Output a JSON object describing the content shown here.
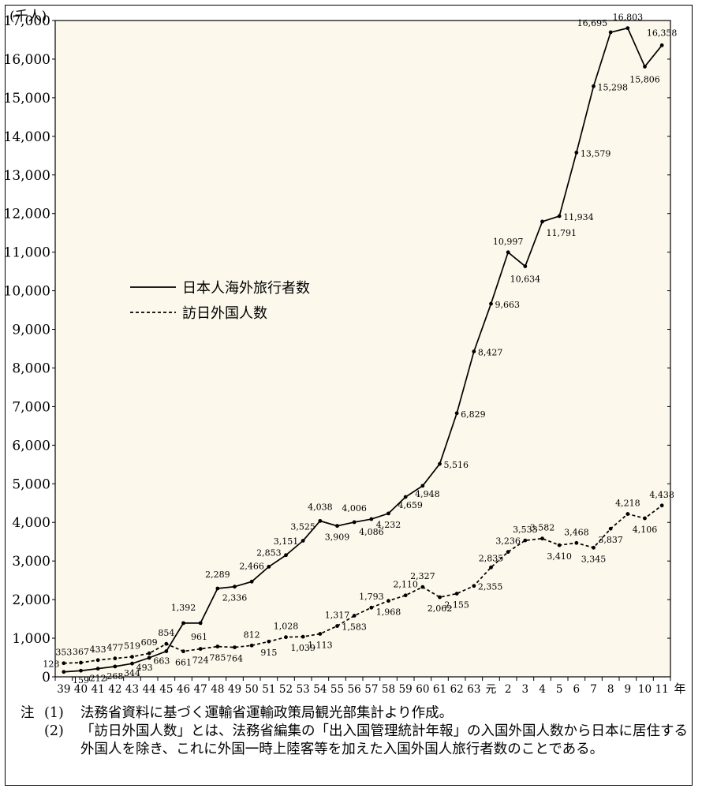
{
  "chart_data": {
    "type": "line",
    "unit_label": "(千人)",
    "x_unit": "年",
    "x": [
      "39",
      "40",
      "41",
      "42",
      "43",
      "44",
      "45",
      "46",
      "47",
      "48",
      "49",
      "50",
      "51",
      "52",
      "53",
      "54",
      "55",
      "56",
      "57",
      "58",
      "59",
      "60",
      "61",
      "62",
      "63",
      "元",
      "2",
      "3",
      "4",
      "5",
      "6",
      "7",
      "8",
      "9",
      "10",
      "11"
    ],
    "y_ticks": [
      0,
      1000,
      2000,
      3000,
      4000,
      5000,
      6000,
      7000,
      8000,
      9000,
      10000,
      11000,
      12000,
      13000,
      14000,
      15000,
      16000,
      17000
    ],
    "ylim": [
      0,
      17000
    ],
    "series": [
      {
        "name": "日本人海外旅行者数",
        "style": "solid",
        "values": [
          128,
          159,
          212,
          268,
          344,
          493,
          663,
          1392,
          1392,
          2289,
          2336,
          2466,
          2853,
          3151,
          3525,
          4038,
          3909,
          4006,
          4086,
          4232,
          4659,
          4948,
          5516,
          6829,
          8427,
          9663,
          10997,
          10634,
          11791,
          11934,
          13579,
          15298,
          16695,
          16803,
          15806,
          16358
        ],
        "labels": [
          "128",
          "159",
          "212",
          "268",
          "344",
          "493",
          "663",
          "1,392",
          "",
          "2,289",
          "2,336",
          "2,466",
          "2,853",
          "3,151",
          "3,525",
          "4,038",
          "3,909",
          "4,006",
          "4,086",
          "4,232",
          "4,659",
          "4,948",
          "5,516",
          "6,829",
          "8,427",
          "9,663",
          "10,997",
          "10,634",
          "11,791",
          "11,934",
          "13,579",
          "15,298",
          "16,695",
          "16,803",
          "15,806",
          "16,358"
        ]
      },
      {
        "name": "訪日外国人数",
        "style": "dashed",
        "values": [
          353,
          367,
          433,
          477,
          519,
          609,
          854,
          661,
          724,
          785,
          764,
          812,
          915,
          1028,
          1039,
          1113,
          1317,
          1583,
          1793,
          1968,
          2110,
          2327,
          2062,
          2155,
          2355,
          2835,
          3236,
          3533,
          3582,
          3410,
          3468,
          3345,
          3837,
          4218,
          4106,
          4438
        ],
        "labels": [
          "353",
          "367",
          "433",
          "477",
          "519",
          "609",
          "854",
          "661",
          "724",
          "785",
          "764",
          "812",
          "915",
          "1,028",
          "1,039",
          "1,113",
          "1,317",
          "1,583",
          "1,793",
          "1,968",
          "2,110",
          "2,327",
          "2,062",
          "2,155",
          "2,355",
          "2,835",
          "3,236",
          "3,533",
          "3,582",
          "3,410",
          "3,468",
          "3,345",
          "3,837",
          "4,218",
          "4,106",
          "4,438"
        ]
      }
    ],
    "extra_labels": [
      "961"
    ],
    "legend_position": "left-middle"
  },
  "notes": {
    "head": "注",
    "items": [
      {
        "num": "(1)",
        "text": "法務省資料に基づく運輸省運輸政策局観光部集計より作成。"
      },
      {
        "num": "(2)",
        "text": "「訪日外国人数」とは、法務省編集の「出入国管理統計年報」の入国外国人数から日本に居住する外国人を除き、これに外国一時上陸客等を加えた入国外国人旅行者数のことである。"
      }
    ]
  }
}
